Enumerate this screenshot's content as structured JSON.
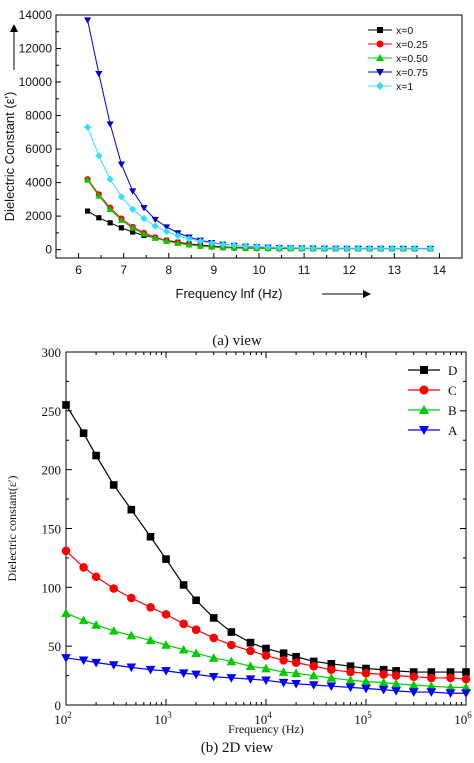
{
  "figure": {
    "caption_a": "(a) view",
    "caption_b": "(b) 2D view"
  },
  "chart_data": [
    {
      "type": "line",
      "panel": "a",
      "xlabel": "Frequency lnf (Hz)",
      "ylabel": "Dielectric Constant (ε')",
      "xlim": [
        5.5,
        14.5
      ],
      "ylim": [
        -500,
        14000
      ],
      "xticks": [
        6,
        7,
        8,
        9,
        10,
        11,
        12,
        13,
        14
      ],
      "yticks": [
        0,
        2000,
        4000,
        6000,
        8000,
        10000,
        12000,
        14000
      ],
      "legend_position": "top-right",
      "grid": false,
      "x": [
        6.2,
        6.45,
        6.7,
        6.95,
        7.2,
        7.45,
        7.7,
        7.95,
        8.2,
        8.45,
        8.7,
        8.95,
        9.2,
        9.45,
        9.7,
        9.95,
        10.2,
        10.45,
        10.7,
        10.95,
        11.2,
        11.45,
        11.7,
        11.95,
        12.2,
        12.45,
        12.7,
        12.95,
        13.2,
        13.45,
        13.8
      ],
      "series": [
        {
          "name": "x=0",
          "color": "#000000",
          "marker": "square",
          "values": [
            2300,
            1900,
            1600,
            1300,
            1050,
            850,
            700,
            560,
            440,
            340,
            270,
            210,
            165,
            130,
            110,
            95,
            85,
            78,
            72,
            68,
            65,
            63,
            61,
            60,
            60,
            59,
            59,
            58,
            58,
            58,
            58
          ]
        },
        {
          "name": "x=0.25",
          "color": "#ff0000",
          "marker": "circle",
          "values": [
            4200,
            3300,
            2500,
            1850,
            1350,
            1000,
            730,
            540,
            400,
            300,
            220,
            165,
            125,
            100,
            85,
            75,
            70,
            66,
            63,
            61,
            60,
            59,
            58,
            58,
            57,
            57,
            57,
            56,
            56,
            56,
            56
          ]
        },
        {
          "name": "x=0.50",
          "color": "#00cc00",
          "marker": "triangle-up",
          "values": [
            4150,
            3200,
            2400,
            1750,
            1280,
            930,
            680,
            500,
            370,
            280,
            210,
            160,
            120,
            95,
            80,
            72,
            67,
            63,
            61,
            60,
            59,
            58,
            58,
            57,
            57,
            57,
            56,
            56,
            56,
            56,
            56
          ]
        },
        {
          "name": "x=0.75",
          "color": "#0000cc",
          "marker": "triangle-down",
          "values": [
            13700,
            10500,
            7500,
            5100,
            3500,
            2500,
            1800,
            1350,
            1000,
            750,
            560,
            420,
            320,
            250,
            200,
            165,
            140,
            120,
            105,
            95,
            88,
            83,
            79,
            76,
            74,
            72,
            71,
            70,
            69,
            68,
            68
          ]
        },
        {
          "name": "x=1",
          "color": "#33ddff",
          "marker": "diamond",
          "values": [
            7300,
            5600,
            4200,
            3150,
            2400,
            1850,
            1400,
            1080,
            830,
            640,
            500,
            390,
            310,
            250,
            205,
            170,
            145,
            125,
            110,
            100,
            92,
            86,
            82,
            79,
            77,
            75,
            74,
            73,
            72,
            71,
            71
          ]
        }
      ]
    },
    {
      "type": "line",
      "panel": "b",
      "xlabel": "Frequency (Hz)",
      "ylabel": "Dielectric constant(ε′)",
      "xscale": "log",
      "xlim": [
        100,
        1000000
      ],
      "ylim": [
        0,
        300
      ],
      "xtick_exponents": [
        "2",
        "3",
        "4",
        "5",
        "6"
      ],
      "yticks": [
        0,
        50,
        100,
        150,
        200,
        250,
        300
      ],
      "legend_position": "top-right",
      "grid": false,
      "x": [
        100,
        150,
        200,
        300,
        450,
        700,
        1000,
        1500,
        2000,
        3000,
        4500,
        7000,
        10000,
        15000,
        20000,
        30000,
        45000,
        70000,
        100000,
        150000,
        200000,
        300000,
        450000,
        700000,
        1000000
      ],
      "series": [
        {
          "name": "D",
          "color": "#000000",
          "marker": "square",
          "values": [
            255,
            231,
            212,
            187,
            166,
            143,
            124,
            102,
            89,
            74,
            62,
            53,
            48,
            44,
            41,
            37,
            35,
            33,
            31,
            30,
            29,
            28,
            28,
            28,
            28
          ]
        },
        {
          "name": "C",
          "color": "#ff0000",
          "marker": "circle",
          "values": [
            131,
            117,
            109,
            99,
            91,
            83,
            77,
            69,
            64,
            57,
            51,
            46,
            42,
            38,
            36,
            33,
            30,
            28,
            27,
            26,
            25,
            24,
            23,
            23,
            22
          ]
        },
        {
          "name": "B",
          "color": "#00cc00",
          "marker": "triangle-up",
          "values": [
            78,
            72,
            68,
            63,
            59,
            55,
            51,
            47,
            44,
            40,
            37,
            33,
            31,
            28,
            27,
            25,
            23,
            21,
            20,
            19,
            18,
            17,
            16,
            15,
            15
          ]
        },
        {
          "name": "A",
          "color": "#0000ff",
          "marker": "triangle-down",
          "values": [
            40,
            38,
            36,
            34,
            32,
            30,
            29,
            27,
            26,
            24,
            23,
            22,
            21,
            19,
            18,
            17,
            16,
            15,
            14,
            13,
            12,
            11,
            11,
            10,
            10
          ]
        }
      ]
    }
  ]
}
